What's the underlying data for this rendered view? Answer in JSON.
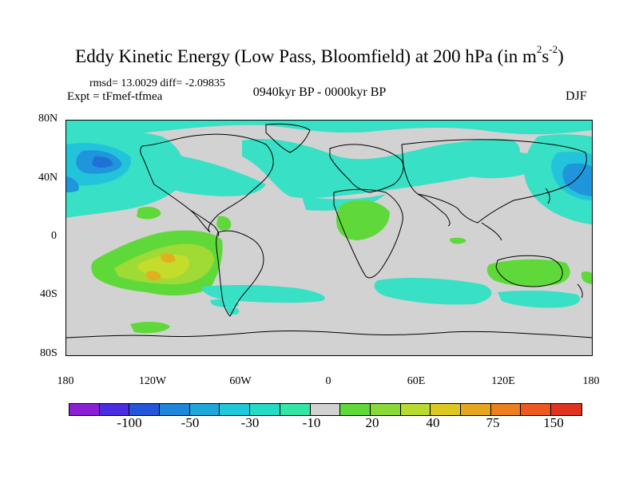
{
  "header": {
    "title_main": "Eddy Kinetic Energy (Low Pass, Bloomfield) at 200 hPa (in m",
    "title_exp1": "2",
    "title_mid": "s",
    "title_exp2": "-2",
    "title_end": ")",
    "stats": "rmsd= 13.0029 diff= -2.09835",
    "expt": "Expt = tFmef-tfmea",
    "period": "0940kyr BP - 0000kyr BP",
    "season": "DJF"
  },
  "axes": {
    "lat_labels": [
      "80N",
      "40N",
      "0",
      "40S",
      "80S"
    ],
    "lon_labels": [
      "180",
      "120W",
      "60W",
      "0",
      "60E",
      "120E",
      "180"
    ]
  },
  "colorbar": {
    "colors": [
      "#8c1fd6",
      "#4b2ce0",
      "#2356d8",
      "#1f86d9",
      "#1fa7da",
      "#1fc9d9",
      "#25dbc3",
      "#34e6a6",
      "#d2d2d2",
      "#5fd93a",
      "#8ad93a",
      "#b9da2e",
      "#dcc91f",
      "#e6a51f",
      "#ec8020",
      "#ec5a1f",
      "#e0331f"
    ],
    "labels": [
      "-100",
      "-50",
      "-30",
      "-10",
      "20",
      "40",
      "75",
      "150"
    ]
  },
  "map_colors": {
    "land_line": "#000000",
    "neutral": "#d2d2d2",
    "cyan_light": "#38e0c6",
    "cyan_mid": "#22c4dc",
    "blue_mid": "#1f95dc",
    "blue_dark": "#2070d6",
    "green": "#5fd93a",
    "green_yellow": "#a0da35",
    "yellow_green": "#c4dc2c",
    "orange": "#e0b020"
  }
}
